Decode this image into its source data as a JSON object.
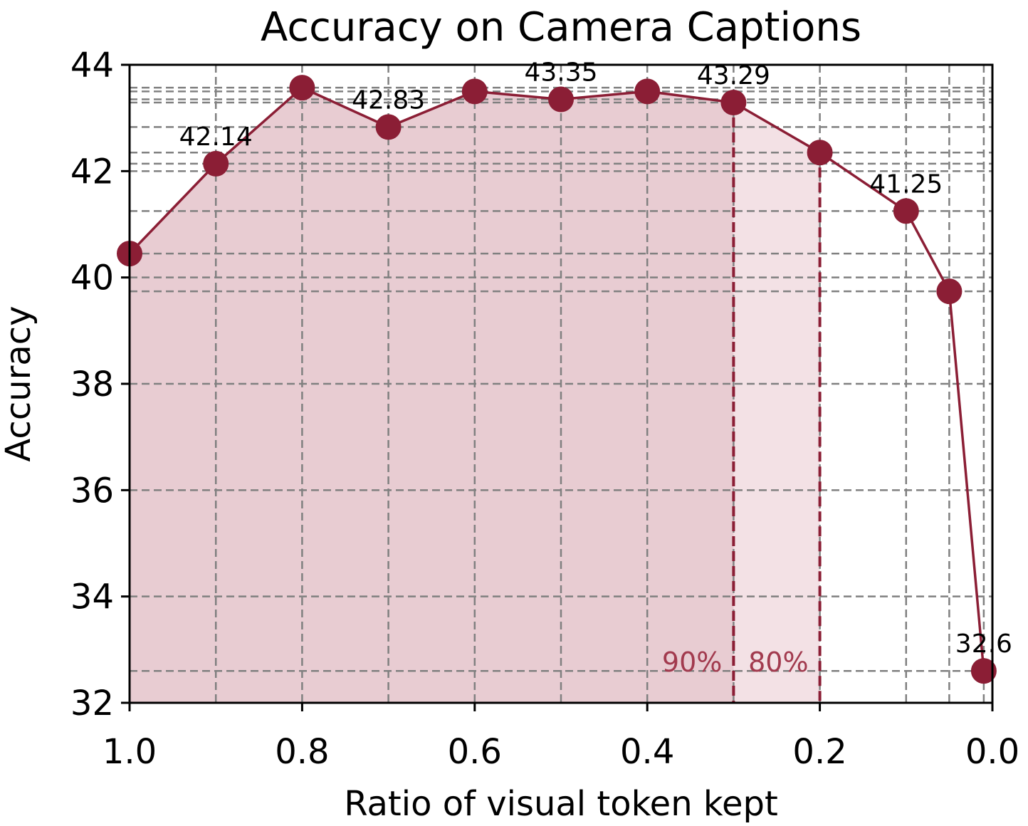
{
  "chart_data": {
    "type": "line",
    "title": "Accuracy on Camera Captions",
    "xlabel": "Ratio of visual token kept",
    "ylabel": "Accuracy",
    "xlim": [
      1.0,
      0.0
    ],
    "ylim": [
      32,
      44
    ],
    "x_reversed": true,
    "grid": true,
    "grid_style": "dashed",
    "x_ticks": [
      1.0,
      0.8,
      0.6,
      0.4,
      0.2,
      0.0
    ],
    "x_tick_labels": [
      "1.0",
      "0.8",
      "0.6",
      "0.4",
      "0.2",
      "0.0"
    ],
    "y_ticks": [
      32,
      34,
      36,
      38,
      40,
      42,
      44
    ],
    "y_tick_labels": [
      "32",
      "34",
      "36",
      "38",
      "40",
      "42",
      "44"
    ],
    "series": [
      {
        "color": "#8b1e35",
        "x": [
          1.0,
          0.9,
          0.8,
          0.7,
          0.6,
          0.5,
          0.4,
          0.3,
          0.2,
          0.1,
          0.05,
          0.01
        ],
        "values": [
          40.45,
          42.14,
          43.57,
          42.83,
          43.5,
          43.35,
          43.5,
          43.29,
          42.35,
          41.25,
          39.74,
          32.6
        ]
      }
    ],
    "data_labels": [
      {
        "x": 0.9,
        "y": 42.14,
        "text": "42.14"
      },
      {
        "x": 0.7,
        "y": 42.83,
        "text": "42.83"
      },
      {
        "x": 0.5,
        "y": 43.35,
        "text": "43.35"
      },
      {
        "x": 0.3,
        "y": 43.29,
        "text": "43.29"
      },
      {
        "x": 0.1,
        "y": 41.25,
        "text": "41.25"
      },
      {
        "x": 0.01,
        "y": 32.6,
        "text": "32.6"
      }
    ],
    "thresholds": [
      {
        "x": 0.3,
        "text": "90%",
        "fill": "#e8ccd2"
      },
      {
        "x": 0.2,
        "text": "80%",
        "fill": "#f3e1e5"
      }
    ],
    "colors": {
      "line": "#8b1e35",
      "threshold_text": "#a23a4e",
      "grid": "#808080"
    }
  }
}
